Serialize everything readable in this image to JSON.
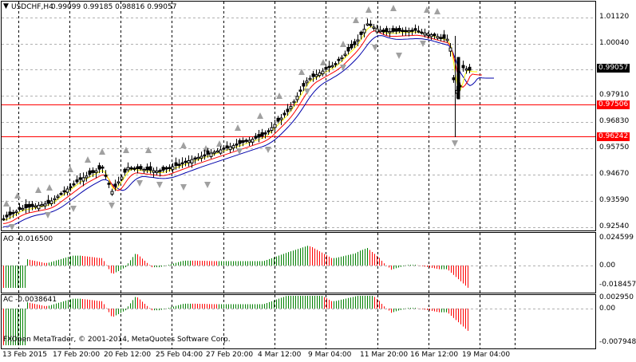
{
  "header": {
    "symbol_timeframe": "USDCHF,H4",
    "ohlc": "0.99099 0.99185 0.98816 0.99057"
  },
  "main_axis": {
    "ticks": [
      "1.01120",
      "1.00040",
      "0.97910",
      "0.96830",
      "0.95750",
      "0.94670",
      "0.93590",
      "0.92540"
    ],
    "price_tag": "0.99057",
    "level_tags": [
      "0.97506",
      "0.96242"
    ]
  },
  "ao_panel": {
    "label": "AO -0.016500",
    "ticks": [
      "0.024599",
      "0.00",
      "-0.018457"
    ]
  },
  "ac_panel": {
    "label": "AC -0.0038641",
    "ticks": [
      "0.002950",
      "0.00",
      "-0.007948"
    ]
  },
  "time_axis": {
    "labels": [
      "13 Feb 2015",
      "17 Feb 20:00",
      "20 Feb 12:00",
      "25 Feb 04:00",
      "27 Feb 20:00",
      "4 Mar 12:00",
      "9 Mar 04:00",
      "11 Mar 20:00",
      "16 Mar 12:00",
      "19 Mar 04:00"
    ]
  },
  "copyright": "FXOpen MetaTrader, © 2001-2014, MetaQuotes Software Corp.",
  "colors": {
    "background": "#ffffff",
    "grid": "#000000",
    "candle": "#000000",
    "ma_fast": "#ffff00",
    "ma_mid": "#ff0000",
    "ma_slow": "#0000aa",
    "hline": "#ff0000",
    "fractal": "#a0a0a0",
    "osc_up": "#008000",
    "osc_down": "#ff0000"
  }
}
